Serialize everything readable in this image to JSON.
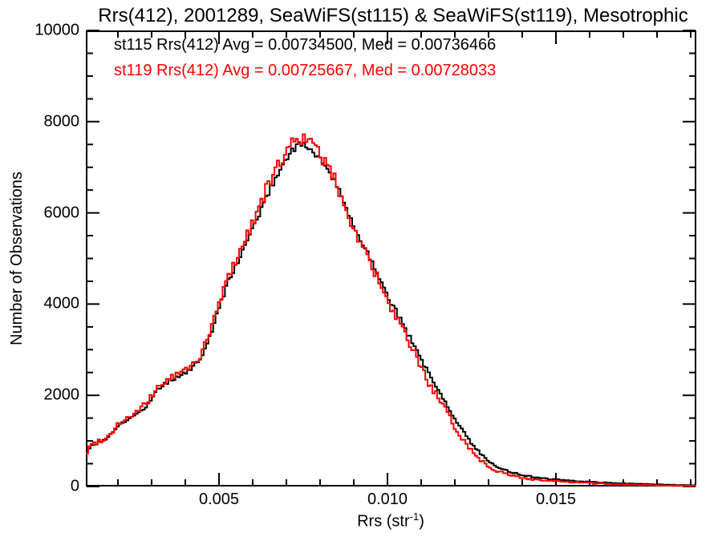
{
  "title": "Rrs(412), 2001289, SeaWiFS(st115) & SeaWiFS(st119), Mesotrophic",
  "annotations": {
    "line1": {
      "text": "st115 Rrs(412) Avg = 0.00734500, Med = 0.00736466",
      "color": "#000000"
    },
    "line2": {
      "text": "st119 Rrs(412) Avg = 0.00725667, Med = 0.00728033",
      "color": "#ff0000"
    }
  },
  "axes": {
    "x_label_pre": "Rrs (str",
    "x_label_sup": "-1",
    "x_label_post": ")",
    "y_label": "Number of Observations"
  },
  "chart_data": {
    "type": "line",
    "style": "step-histogram-overlay",
    "title": "Rrs(412), 2001289, SeaWiFS(st115) & SeaWiFS(st119), Mesotrophic",
    "xlabel": "Rrs (str^-1)",
    "ylabel": "Number of Observations",
    "grid": false,
    "legend_position": "top-left-inside-as-colored-text",
    "xlim": [
      0.001048,
      0.019167
    ],
    "ylim": [
      0,
      10000
    ],
    "x_ticks": {
      "major": [
        0.005,
        0.01,
        0.015
      ],
      "labels": [
        "0.005",
        "0.010",
        "0.015"
      ],
      "minor_step": 0.001
    },
    "y_ticks": {
      "major": [
        0,
        2000,
        4000,
        6000,
        8000,
        10000
      ],
      "labels": [
        "0",
        "2000",
        "4000",
        "6000",
        "8000",
        "10000"
      ],
      "minor_step": 500
    },
    "bins": 259,
    "frame_color": "#000000",
    "x": [
      0.00105,
      0.0012,
      0.0014,
      0.0017,
      0.002,
      0.0023,
      0.0026,
      0.0029,
      0.0032,
      0.0035,
      0.0038,
      0.004,
      0.0042,
      0.0044,
      0.0046,
      0.0048,
      0.005,
      0.0052,
      0.0054,
      0.0056,
      0.0058,
      0.006,
      0.0062,
      0.0064,
      0.0066,
      0.0068,
      0.007,
      0.0071,
      0.0072,
      0.0073,
      0.0074,
      0.0076,
      0.0078,
      0.008,
      0.0082,
      0.0084,
      0.0086,
      0.0088,
      0.009,
      0.0092,
      0.0094,
      0.0096,
      0.0098,
      0.01,
      0.0102,
      0.0104,
      0.0106,
      0.0108,
      0.011,
      0.0112,
      0.0114,
      0.0116,
      0.0118,
      0.012,
      0.0122,
      0.0124,
      0.0126,
      0.0128,
      0.013,
      0.0133,
      0.0136,
      0.014,
      0.0144,
      0.0148,
      0.0152,
      0.0158,
      0.0164,
      0.017,
      0.0178,
      0.0186,
      0.01917
    ],
    "series": [
      {
        "name": "st115",
        "sensor": "SeaWiFS",
        "color": "#000000",
        "avg": 0.007345,
        "med": 0.00736466,
        "seed": 17,
        "noise": 0.9,
        "values": [
          740,
          900,
          960,
          1060,
          1340,
          1460,
          1610,
          1810,
          2160,
          2300,
          2420,
          2500,
          2590,
          2760,
          3020,
          3450,
          3900,
          4350,
          4700,
          5000,
          5320,
          5650,
          6000,
          6350,
          6650,
          6950,
          7200,
          7300,
          7400,
          7460,
          7490,
          7460,
          7350,
          7180,
          6980,
          6720,
          6420,
          6050,
          5700,
          5430,
          5150,
          4850,
          4520,
          4180,
          3920,
          3650,
          3350,
          3100,
          2800,
          2500,
          2250,
          2020,
          1760,
          1480,
          1260,
          1040,
          850,
          700,
          560,
          420,
          330,
          250,
          200,
          165,
          140,
          110,
          88,
          68,
          48,
          34,
          26
        ]
      },
      {
        "name": "st119",
        "sensor": "SeaWiFS",
        "color": "#ff0000",
        "avg": 0.00725667,
        "med": 0.00728033,
        "seed": 99,
        "noise": 1.7,
        "values": [
          700,
          920,
          985,
          1085,
          1370,
          1500,
          1650,
          1855,
          2200,
          2345,
          2470,
          2555,
          2650,
          2830,
          3100,
          3540,
          4000,
          4460,
          4820,
          5130,
          5460,
          5800,
          6150,
          6500,
          6800,
          7100,
          7350,
          7460,
          7560,
          7640,
          7660,
          7590,
          7460,
          7280,
          7050,
          6780,
          6440,
          6020,
          5640,
          5350,
          5060,
          4740,
          4390,
          4030,
          3770,
          3500,
          3200,
          2930,
          2620,
          2310,
          2060,
          1830,
          1570,
          1300,
          1080,
          880,
          700,
          560,
          440,
          330,
          255,
          190,
          150,
          125,
          105,
          82,
          62,
          46,
          30,
          20,
          13
        ]
      }
    ]
  }
}
